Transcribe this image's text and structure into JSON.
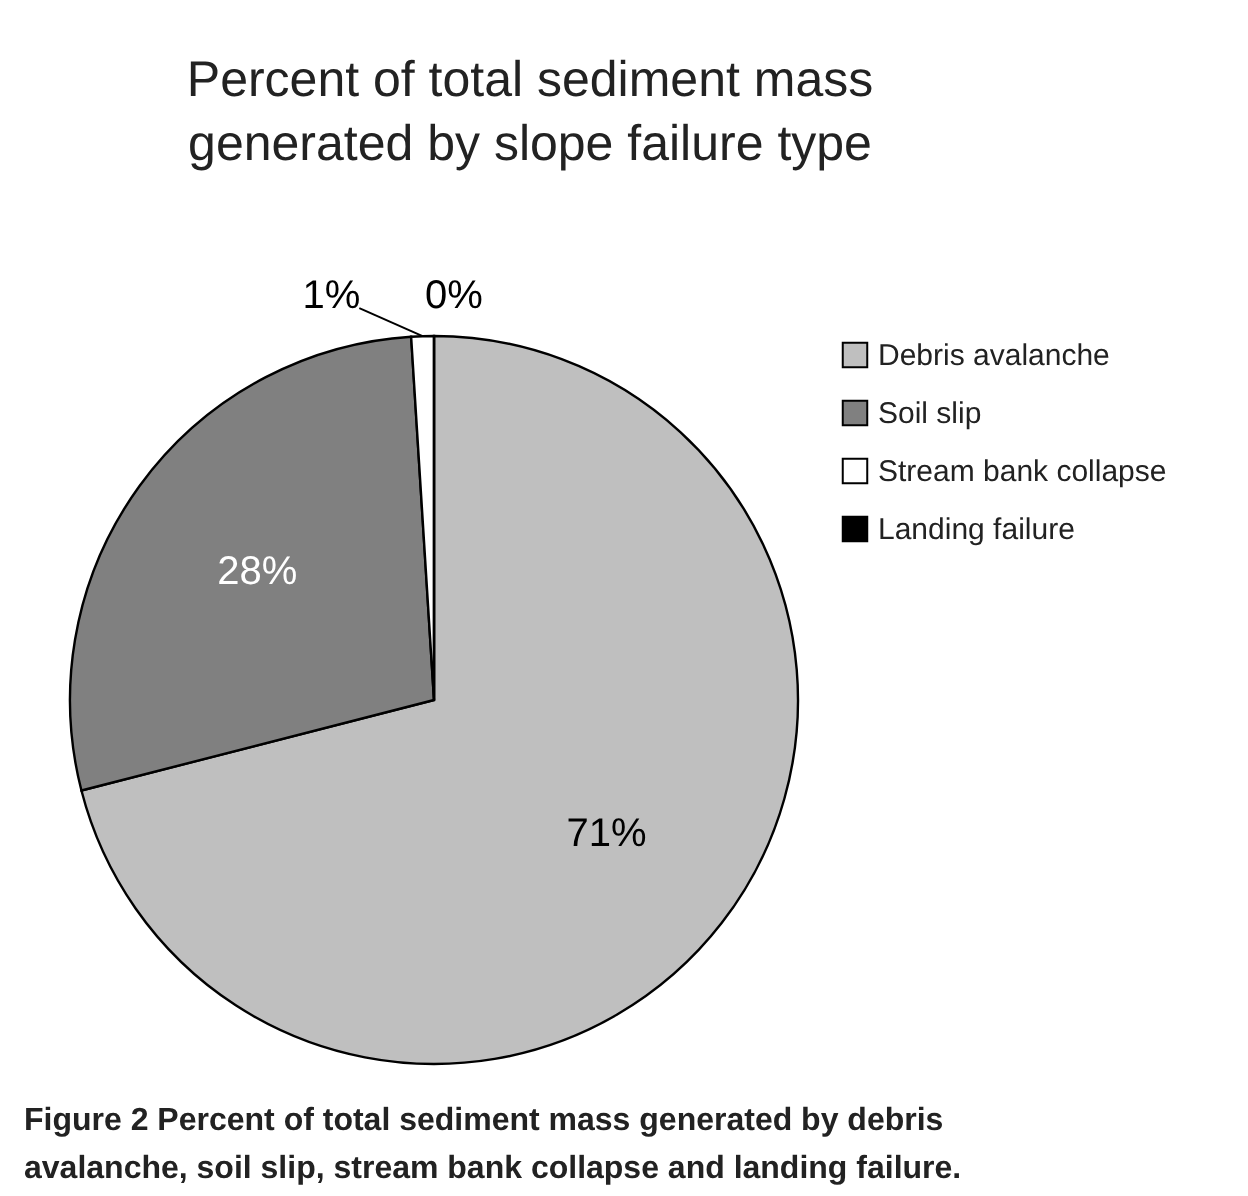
{
  "chart_data": {
    "type": "pie",
    "title": "Percent of total sediment mass generated by slope failure type",
    "categories": [
      "Debris avalanche",
      "Soil slip",
      "Stream bank collapse",
      "Landing failure"
    ],
    "values": [
      71,
      28,
      1,
      0
    ],
    "colors": [
      "#bfbfbf",
      "#808080",
      "#ffffff",
      "#000000"
    ],
    "value_labels": [
      "71%",
      "28%",
      "1%",
      "0%"
    ],
    "legend": "right",
    "annotations": [
      "Figure 2 Percent of total sediment mass generated by debris avalanche, soil slip, stream bank collapse and landing failure."
    ]
  }
}
